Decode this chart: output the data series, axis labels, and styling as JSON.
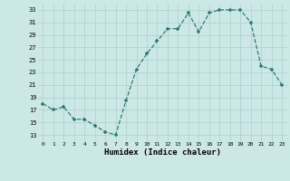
{
  "x": [
    0,
    1,
    2,
    3,
    4,
    5,
    6,
    7,
    8,
    9,
    10,
    11,
    12,
    13,
    14,
    15,
    16,
    17,
    18,
    19,
    20,
    21,
    22,
    23
  ],
  "y": [
    18,
    17,
    17.5,
    15.5,
    15.5,
    14.5,
    13.5,
    13,
    18.5,
    23.5,
    26,
    28,
    30,
    30,
    32.5,
    29.5,
    32.5,
    33,
    33,
    33,
    31,
    24,
    23.5,
    21
  ],
  "line_color": "#2e7d6e",
  "marker": "+",
  "xlabel": "Humidex (Indice chaleur)",
  "xlim": [
    -0.5,
    23.5
  ],
  "ylim": [
    12,
    34
  ],
  "yticks": [
    13,
    15,
    17,
    19,
    21,
    23,
    25,
    27,
    29,
    31,
    33
  ],
  "xticks": [
    0,
    1,
    2,
    3,
    4,
    5,
    6,
    7,
    8,
    9,
    10,
    11,
    12,
    13,
    14,
    15,
    16,
    17,
    18,
    19,
    20,
    21,
    22,
    23
  ],
  "bg_color": "#cce8e6",
  "grid_color": "#aacfcc"
}
